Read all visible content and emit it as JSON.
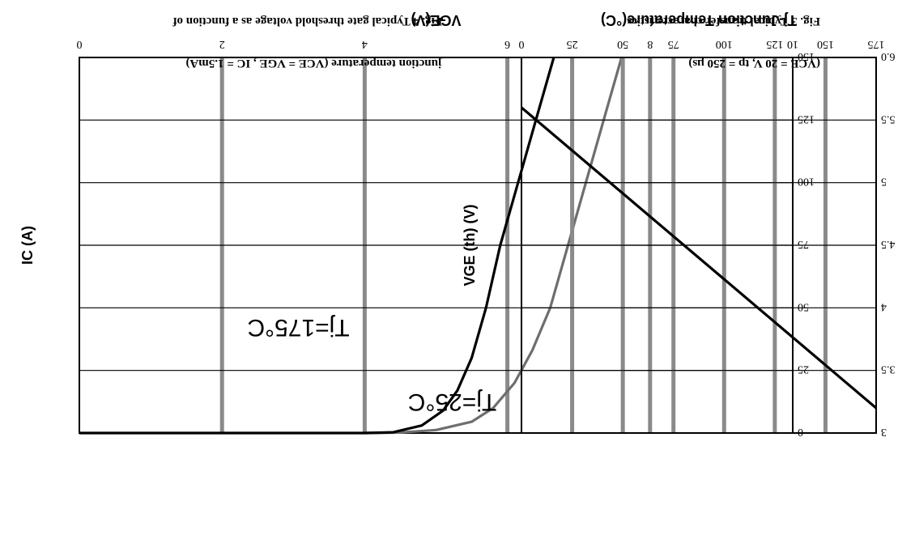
{
  "colors": {
    "grid_dark": "#000000",
    "grid_gray": "#8a8a8a",
    "curve_175": "#000000",
    "curve_25": "#6e6e6e",
    "frame": "#000000"
  },
  "chart_data": [
    {
      "id": "fig3",
      "type": "line",
      "title": "Fig. 3 Typical transfer characteristics",
      "subtitle": "(VCE = 20 V, tp = 250 μs)",
      "xlabel": "VGE(V)",
      "ylabel": "IC (A)",
      "xlim": [
        0,
        10
      ],
      "ylim": [
        0,
        150
      ],
      "x_ticks": [
        "0",
        "2",
        "4",
        "6",
        "8",
        "10"
      ],
      "y_ticks": [
        "0",
        "25",
        "50",
        "75",
        "100",
        "125",
        "150"
      ],
      "x_tick_values": [
        0,
        2,
        4,
        6,
        8,
        10
      ],
      "y_tick_values": [
        0,
        25,
        50,
        75,
        100,
        125,
        150
      ],
      "grid": true,
      "series": [
        {
          "name": "Tj=25°C",
          "color": "#6e6e6e",
          "points": [
            [
              4.0,
              0
            ],
            [
              4.5,
              0.2
            ],
            [
              5.0,
              1.2
            ],
            [
              5.5,
              4.5
            ],
            [
              5.8,
              10
            ],
            [
              6.1,
              20
            ],
            [
              6.35,
              33
            ],
            [
              6.6,
              50
            ],
            [
              6.85,
              75
            ],
            [
              7.1,
              100
            ],
            [
              7.35,
              125
            ],
            [
              7.6,
              150
            ]
          ]
        },
        {
          "name": "Tj=175°C",
          "color": "#000000",
          "points": [
            [
              0.0,
              0
            ],
            [
              4.0,
              0
            ],
            [
              4.4,
              0.3
            ],
            [
              4.8,
              3
            ],
            [
              5.1,
              9
            ],
            [
              5.3,
              17
            ],
            [
              5.5,
              30
            ],
            [
              5.7,
              50
            ],
            [
              5.9,
              75
            ],
            [
              6.15,
              100
            ],
            [
              6.4,
              125
            ],
            [
              6.65,
              150
            ]
          ]
        }
      ],
      "annotations": [
        "Tj=25°C",
        "Tj=175°C"
      ]
    },
    {
      "id": "fig4",
      "type": "line",
      "title": "Fig. 4 Typical gate threshold voltage as a function of",
      "subtitle": "junction temperature (VCE = VGE , IC = 1.5mA)",
      "xlabel": "Tj-Junction Temperature(°C)",
      "ylabel": "VGE (th) (V)",
      "xlim": [
        0,
        175
      ],
      "ylim": [
        3,
        6
      ],
      "x_ticks": [
        "0",
        "25",
        "50",
        "75",
        "100",
        "125",
        "150",
        "175"
      ],
      "y_ticks": [
        "3",
        "3.5",
        "4",
        "4.5",
        "5",
        "5.5",
        "6.0"
      ],
      "x_tick_values": [
        0,
        25,
        50,
        75,
        100,
        125,
        150,
        175
      ],
      "y_tick_values": [
        3,
        3.5,
        4,
        4.5,
        5,
        5.5,
        6
      ],
      "grid": true,
      "series": [
        {
          "name": "VGE(th)",
          "color": "#000000",
          "points": [
            [
              0,
              5.6
            ],
            [
              175,
              3.2
            ]
          ]
        }
      ]
    }
  ]
}
